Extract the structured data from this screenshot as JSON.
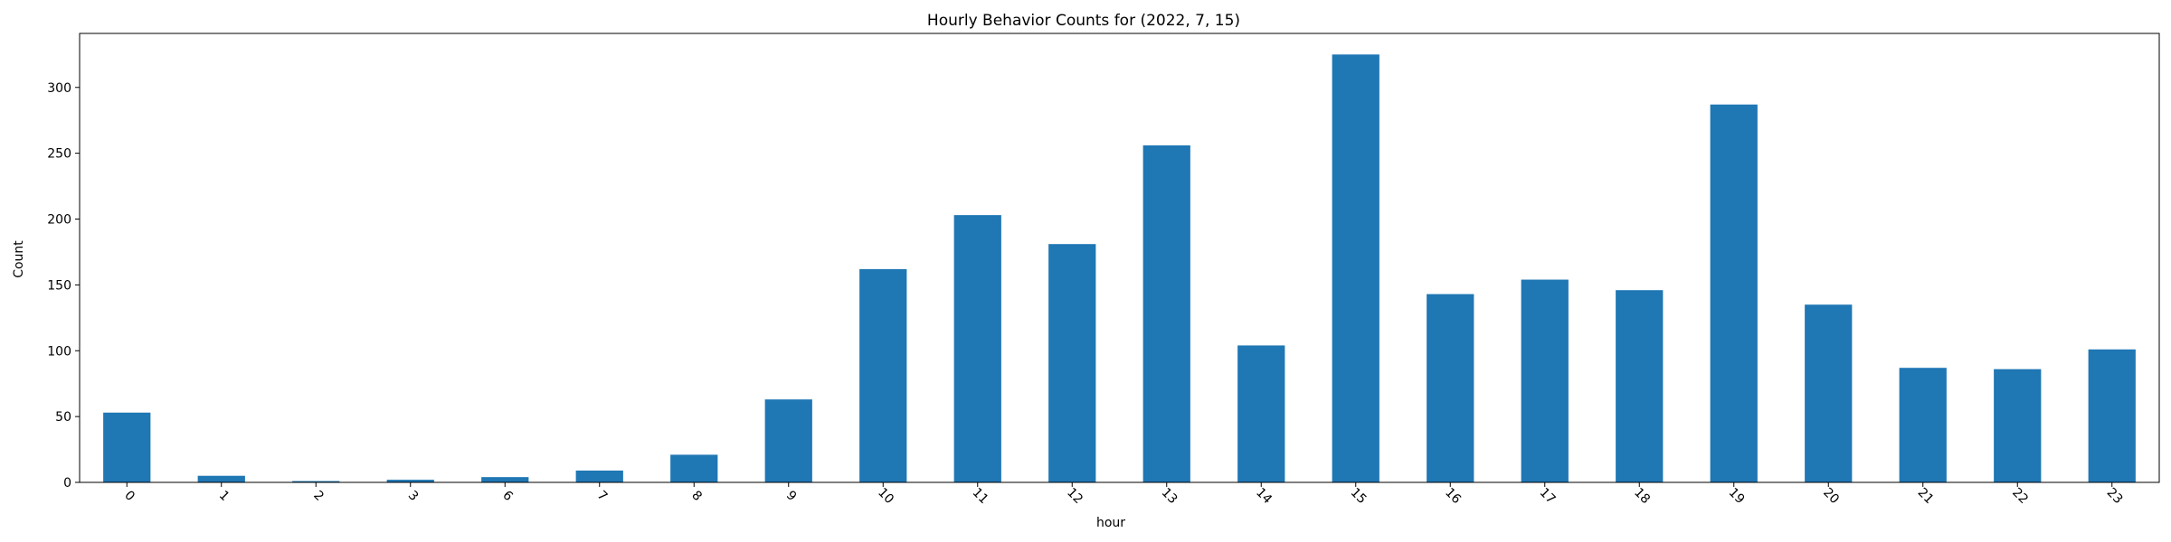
{
  "chart_data": {
    "type": "bar",
    "title": "Hourly Behavior Counts for (2022, 7, 15)",
    "xlabel": "hour",
    "ylabel": "Count",
    "categories": [
      "0",
      "1",
      "2",
      "3",
      "6",
      "7",
      "8",
      "9",
      "10",
      "11",
      "12",
      "13",
      "14",
      "15",
      "16",
      "17",
      "18",
      "19",
      "20",
      "21",
      "22",
      "23"
    ],
    "values": [
      53,
      5,
      1,
      2,
      4,
      9,
      21,
      63,
      162,
      203,
      181,
      256,
      104,
      325,
      143,
      154,
      146,
      287,
      135,
      87,
      86,
      101
    ],
    "ylim": [
      0,
      341
    ],
    "yticks": [
      0,
      50,
      100,
      150,
      200,
      250,
      300
    ],
    "color": "#1f77b4",
    "grid": false,
    "legend": "none",
    "xtick_rotation": 45
  }
}
